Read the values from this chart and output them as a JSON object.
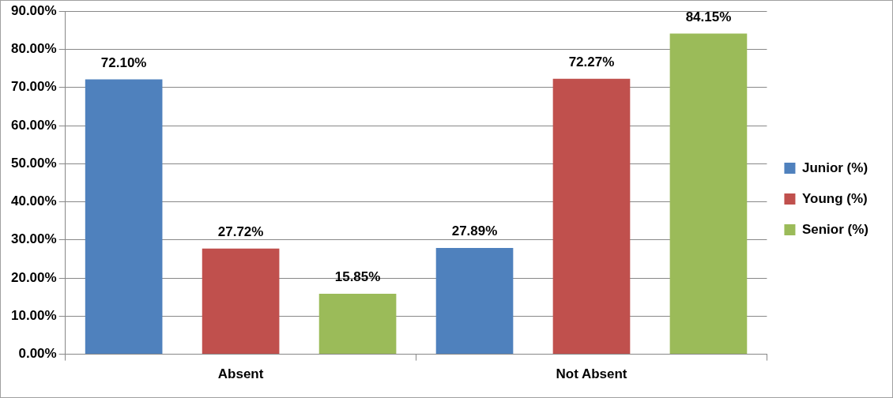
{
  "chart_data": {
    "type": "bar",
    "categories": [
      "Absent",
      "Not Absent"
    ],
    "series": [
      {
        "name": "Junior (%)",
        "color": "#4f81bd",
        "values": [
          72.1,
          27.89
        ],
        "value_labels": [
          "72.10%",
          "27.89%"
        ]
      },
      {
        "name": "Young (%)",
        "color": "#c0504d",
        "values": [
          27.72,
          72.27
        ],
        "value_labels": [
          "27.72%",
          "72.27%"
        ]
      },
      {
        "name": "Senior (%)",
        "color": "#9bbb59",
        "values": [
          15.85,
          84.15
        ],
        "value_labels": [
          "15.85%",
          "84.15%"
        ]
      }
    ],
    "ylim": [
      0,
      90
    ],
    "yticks": [
      {
        "value": 0,
        "label": "0.00%"
      },
      {
        "value": 10,
        "label": "10.00%"
      },
      {
        "value": 20,
        "label": "20.00%"
      },
      {
        "value": 30,
        "label": "30.00%"
      },
      {
        "value": 40,
        "label": "40.00%"
      },
      {
        "value": 50,
        "label": "50.00%"
      },
      {
        "value": 60,
        "label": "60.00%"
      },
      {
        "value": 70,
        "label": "70.00%"
      },
      {
        "value": 80,
        "label": "80.00%"
      },
      {
        "value": 90,
        "label": "90.00%"
      }
    ],
    "grid": "y",
    "legend": "right"
  }
}
